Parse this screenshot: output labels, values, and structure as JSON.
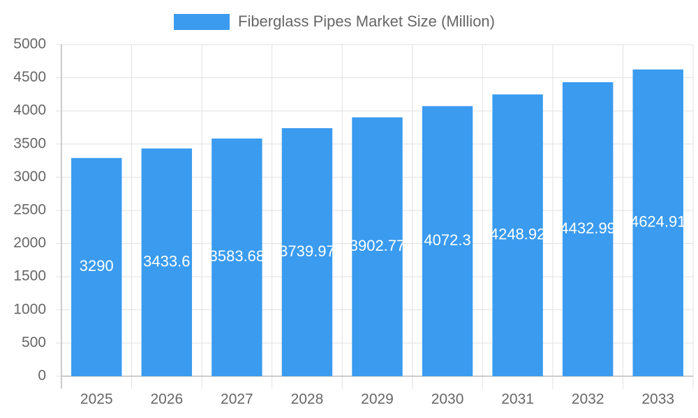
{
  "chart_data": {
    "type": "bar",
    "categories": [
      "2025",
      "2026",
      "2027",
      "2028",
      "2029",
      "2030",
      "2031",
      "2032",
      "2033"
    ],
    "series": [
      {
        "name": "Fiberglass Pipes Market Size (Million)",
        "color": "#3a9bef",
        "values": [
          3290,
          3433.6,
          3583.68,
          3739.97,
          3902.77,
          4072.3,
          4248.92,
          4432.99,
          4624.91
        ]
      }
    ],
    "ylim": [
      0,
      5000
    ],
    "yticks": [
      0,
      500,
      1000,
      1500,
      2000,
      2500,
      3000,
      3500,
      4000,
      4500,
      5000
    ],
    "grid": true,
    "legend": "top"
  }
}
